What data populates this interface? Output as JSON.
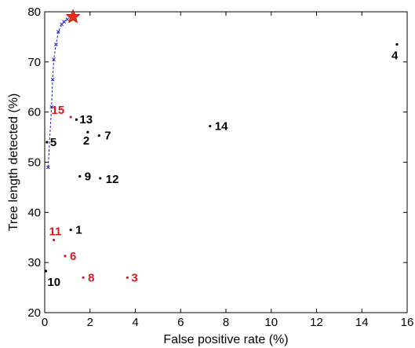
{
  "chart_data": {
    "type": "scatter",
    "xlabel": "False positive rate (%)",
    "ylabel": "Tree length detected (%)",
    "xlim": [
      0,
      16
    ],
    "ylim": [
      20,
      80
    ],
    "xticks": [
      0,
      2,
      4,
      6,
      8,
      10,
      12,
      14,
      16
    ],
    "yticks": [
      20,
      30,
      40,
      50,
      60,
      70,
      80
    ],
    "grid": false,
    "colors": {
      "black": "#000000",
      "red": "#e8141b",
      "curve": "#1f1fd0",
      "star": "#e8321e"
    },
    "points": [
      {
        "label": "1",
        "x": 1.15,
        "y": 36.5,
        "color": "black"
      },
      {
        "label": "2",
        "x": 1.9,
        "y": 56.0,
        "color": "black"
      },
      {
        "label": "3",
        "x": 3.65,
        "y": 27.0,
        "color": "red"
      },
      {
        "label": "4",
        "x": 15.55,
        "y": 73.5,
        "color": "black"
      },
      {
        "label": "5",
        "x": 0.1,
        "y": 54.0,
        "color": "black"
      },
      {
        "label": "6",
        "x": 0.9,
        "y": 31.3,
        "color": "red"
      },
      {
        "label": "7",
        "x": 2.4,
        "y": 55.3,
        "color": "black"
      },
      {
        "label": "8",
        "x": 1.7,
        "y": 27.0,
        "color": "red"
      },
      {
        "label": "9",
        "x": 1.55,
        "y": 47.2,
        "color": "black"
      },
      {
        "label": "10",
        "x": 0.05,
        "y": 28.3,
        "color": "black"
      },
      {
        "label": "11",
        "x": 0.4,
        "y": 34.5,
        "color": "red"
      },
      {
        "label": "12",
        "x": 2.45,
        "y": 46.8,
        "color": "black"
      },
      {
        "label": "13",
        "x": 1.4,
        "y": 58.5,
        "color": "black"
      },
      {
        "label": "14",
        "x": 7.3,
        "y": 57.2,
        "color": "black"
      },
      {
        "label": "15",
        "x": 1.15,
        "y": 59.0,
        "color": "red"
      }
    ],
    "curve": {
      "x": [
        0.15,
        0.3,
        0.35,
        0.4,
        0.5,
        0.6,
        0.75,
        0.85,
        1.0
      ],
      "y": [
        49.0,
        61.0,
        66.5,
        70.5,
        73.5,
        76.0,
        77.5,
        78.0,
        78.5
      ]
    },
    "star": {
      "x": 1.25,
      "y": 79.0
    }
  }
}
